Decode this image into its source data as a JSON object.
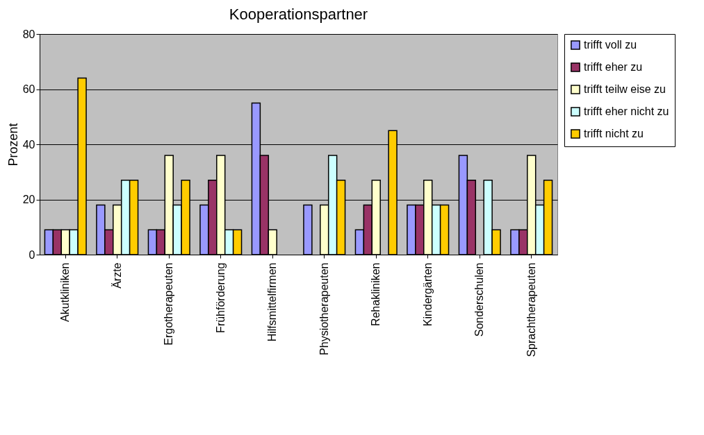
{
  "chart_data": {
    "type": "bar",
    "title": "Kooperationspartner",
    "ylabel": "Prozent",
    "categories": [
      "Akutkliniken",
      "Ärzte",
      "Ergotherapeuten",
      "Frühförderung",
      "Hilfsmittelfirmen",
      "Physiotherapeuten",
      "Rehakliniken",
      "Kindergärten",
      "Sonderschulen",
      "Sprachtherapeuten"
    ],
    "series": [
      {
        "name": "trifft voll zu",
        "color": "#9999ff",
        "values": [
          9,
          18,
          9,
          18,
          55,
          18,
          9,
          18,
          36,
          9
        ]
      },
      {
        "name": "trifft eher zu",
        "color": "#993366",
        "values": [
          9,
          9,
          9,
          27,
          36,
          null,
          18,
          18,
          27,
          9
        ]
      },
      {
        "name": "trifft teilw eise zu",
        "color": "#ffffcc",
        "values": [
          9,
          18,
          36,
          36,
          9,
          18,
          27,
          27,
          null,
          36
        ]
      },
      {
        "name": "trifft eher nicht zu",
        "color": "#ccffff",
        "values": [
          9,
          27,
          18,
          9,
          null,
          36,
          null,
          18,
          27,
          18
        ]
      },
      {
        "name": "trifft nicht zu",
        "color": "#ffcc00",
        "values": [
          64,
          27,
          27,
          9,
          null,
          27,
          45,
          18,
          9,
          27
        ]
      }
    ],
    "ylim": [
      0,
      80
    ],
    "yticks": [
      0,
      20,
      40,
      60,
      80
    ],
    "grid": "y",
    "legend": "right"
  }
}
